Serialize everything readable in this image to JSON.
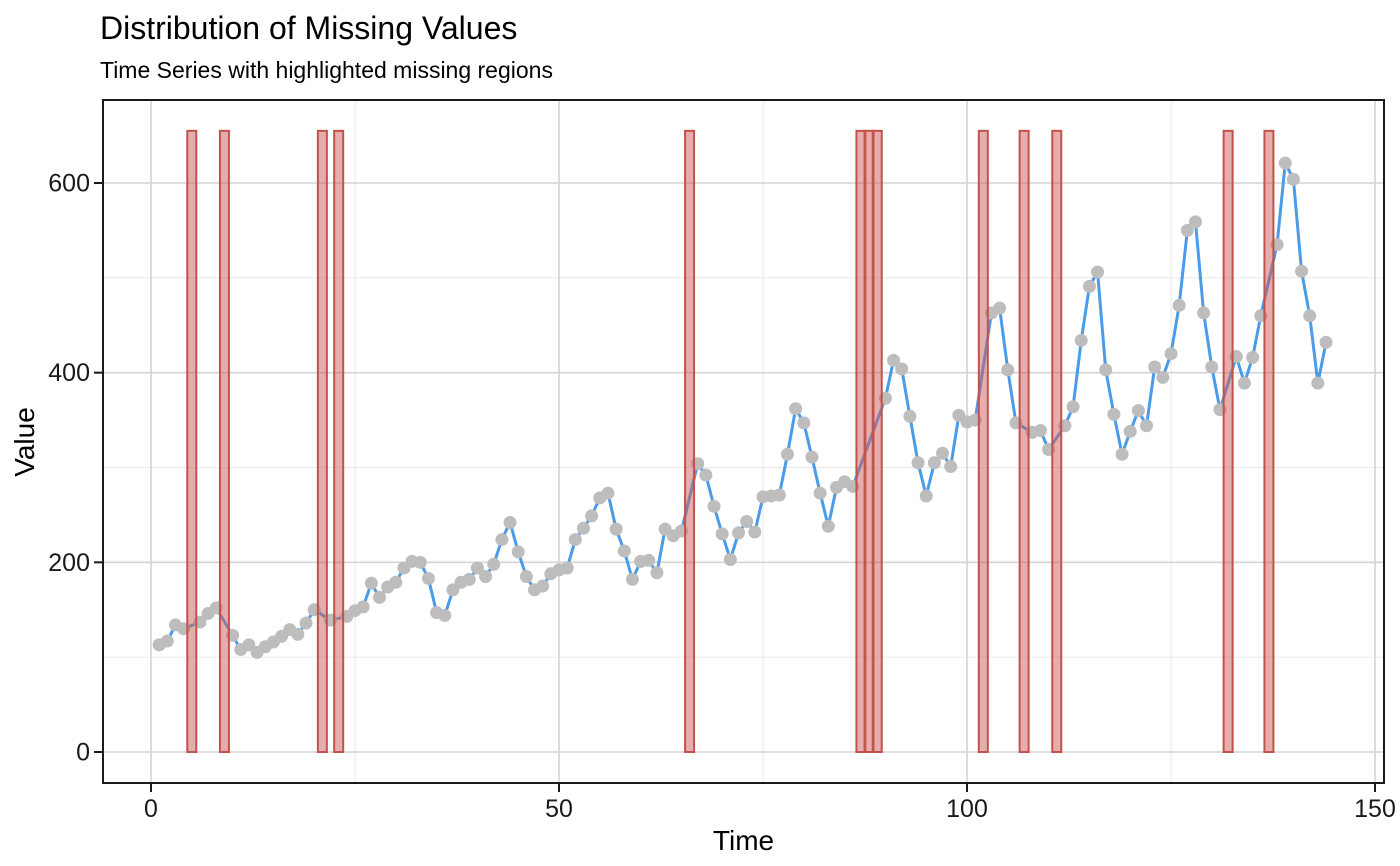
{
  "chart_data": {
    "type": "line",
    "title": "Distribution of Missing Values",
    "subtitle": "Time Series with highlighted missing regions",
    "xlabel": "Time",
    "ylabel": "Value",
    "x_ticks": [
      0,
      50,
      100,
      150
    ],
    "x_minor_ticks": [
      25,
      75,
      125
    ],
    "y_ticks": [
      0,
      200,
      400,
      600
    ],
    "y_minor_ticks": [
      100,
      300,
      500
    ],
    "xlim": [
      -6,
      151.2
    ],
    "ylim": [
      -33,
      686
    ],
    "grid": "on",
    "legend_position": "none",
    "x_start": 1,
    "x": [
      1,
      2,
      3,
      4,
      5,
      6,
      7,
      8,
      9,
      10,
      11,
      12,
      13,
      14,
      15,
      16,
      17,
      18,
      19,
      20,
      21,
      22,
      23,
      24,
      25,
      26,
      27,
      28,
      29,
      30,
      31,
      32,
      33,
      34,
      35,
      36,
      37,
      38,
      39,
      40,
      41,
      42,
      43,
      44,
      45,
      46,
      47,
      48,
      49,
      50,
      51,
      52,
      53,
      54,
      55,
      56,
      57,
      58,
      59,
      60,
      61,
      62,
      63,
      64,
      65,
      66,
      67,
      68,
      69,
      70,
      71,
      72,
      73,
      74,
      75,
      76,
      77,
      78,
      79,
      80,
      81,
      82,
      83,
      84,
      85,
      86,
      87,
      88,
      89,
      90,
      91,
      92,
      93,
      94,
      95,
      96,
      97,
      98,
      99,
      100,
      101,
      102,
      103,
      104,
      105,
      106,
      107,
      108,
      109,
      110,
      111,
      112,
      113,
      114,
      115,
      116,
      117,
      118,
      119,
      120,
      121,
      122,
      123,
      124,
      125,
      126,
      127,
      128,
      129,
      130,
      131,
      132,
      133,
      134,
      135,
      136,
      137,
      138,
      139,
      140,
      141,
      142,
      143,
      144
    ],
    "values": [
      113,
      117,
      134,
      130,
      null,
      137,
      146,
      152,
      null,
      123,
      108,
      113,
      105,
      111,
      116,
      122,
      129,
      124,
      136,
      150,
      null,
      139,
      null,
      143,
      149,
      153,
      178,
      163,
      174,
      179,
      194,
      201,
      200,
      183,
      147,
      144,
      171,
      179,
      182,
      194,
      185,
      198,
      224,
      242,
      211,
      185,
      171,
      175,
      188,
      192,
      194,
      224,
      236,
      249,
      268,
      273,
      235,
      212,
      182,
      201,
      202,
      189,
      235,
      228,
      233,
      null,
      304,
      292,
      259,
      230,
      203,
      231,
      243,
      232,
      269,
      270,
      271,
      314,
      362,
      347,
      311,
      273,
      238,
      279,
      285,
      280,
      null,
      null,
      null,
      373,
      413,
      404,
      354,
      305,
      270,
      305,
      315,
      301,
      355,
      348,
      350,
      null,
      463,
      468,
      403,
      347,
      null,
      337,
      339,
      319,
      null,
      344,
      364,
      434,
      491,
      506,
      403,
      356,
      314,
      338,
      360,
      344,
      406,
      395,
      420,
      471,
      550,
      559,
      463,
      406,
      361,
      null,
      417,
      389,
      416,
      460,
      null,
      535,
      621,
      604,
      507,
      460,
      389,
      432
    ],
    "missing_times": [
      5,
      9,
      21,
      23,
      66,
      87,
      88,
      89,
      102,
      107,
      111,
      132,
      137
    ],
    "missing_bar": {
      "ymin": 0,
      "ymax": 655
    },
    "colors": {
      "line": "#4a9be8",
      "point": "#bdbdbd",
      "bar_fill": "#cd5c5c",
      "bar_stroke": "#c4524c",
      "grid_major": "#d4d4d4",
      "grid_minor": "#ebebeb",
      "panel_border": "#1a1a1a",
      "tick_label": "#1a1a1a",
      "axis_title": "#000000"
    }
  }
}
